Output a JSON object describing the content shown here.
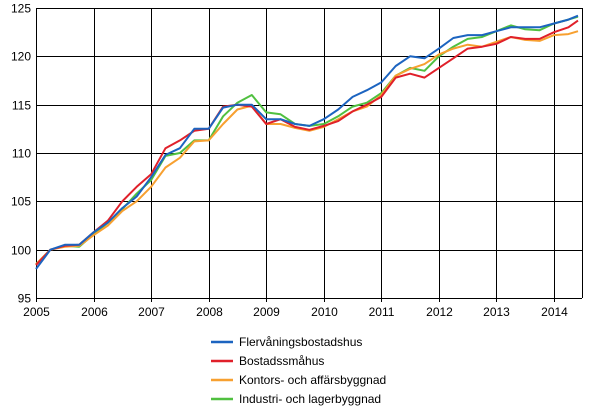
{
  "chart_data": {
    "type": "line",
    "title": "",
    "xlabel": "",
    "ylabel": "",
    "ylim": [
      95,
      125
    ],
    "xlim": [
      "2005-01",
      "2014-06"
    ],
    "yticks": [
      "95",
      "100",
      "105",
      "110",
      "115",
      "120",
      "125"
    ],
    "xticks": [
      "2005",
      "2006",
      "2007",
      "2008",
      "2009",
      "2010",
      "2011",
      "2012",
      "2013",
      "2014"
    ],
    "grid": true,
    "legend_position": "bottom",
    "x": [
      "2005-01",
      "2005-04",
      "2005-07",
      "2005-10",
      "2006-01",
      "2006-04",
      "2006-07",
      "2006-10",
      "2007-01",
      "2007-04",
      "2007-07",
      "2007-10",
      "2008-01",
      "2008-04",
      "2008-07",
      "2008-10",
      "2009-01",
      "2009-04",
      "2009-07",
      "2009-10",
      "2010-01",
      "2010-04",
      "2010-07",
      "2010-10",
      "2011-01",
      "2011-04",
      "2011-07",
      "2011-10",
      "2012-01",
      "2012-04",
      "2012-07",
      "2012-10",
      "2013-01",
      "2013-04",
      "2013-07",
      "2013-10",
      "2014-01",
      "2014-04",
      "2014-06"
    ],
    "series": [
      {
        "name": "Flervåningsbostadshus",
        "color": "#1c64c0",
        "values": [
          98.0,
          100.0,
          100.5,
          100.5,
          101.8,
          102.8,
          104.3,
          105.5,
          107.5,
          109.8,
          110.5,
          112.5,
          112.5,
          114.7,
          115.0,
          115.0,
          113.5,
          113.5,
          113.0,
          112.8,
          113.5,
          114.5,
          115.8,
          116.5,
          117.3,
          119.0,
          120.0,
          119.8,
          120.8,
          121.9,
          122.2,
          122.2,
          122.6,
          123.0,
          123.0,
          123.0,
          123.4,
          123.8,
          124.2
        ]
      },
      {
        "name": "Bostadssmåhus",
        "color": "#e0202a",
        "values": [
          98.4,
          100.0,
          100.4,
          100.5,
          101.8,
          103.0,
          105.0,
          106.5,
          107.8,
          110.5,
          111.3,
          112.3,
          112.5,
          114.8,
          115.0,
          114.8,
          113.0,
          113.5,
          112.7,
          112.4,
          112.8,
          113.3,
          114.3,
          115.0,
          115.8,
          117.8,
          118.2,
          117.8,
          118.8,
          119.8,
          120.8,
          121.0,
          121.3,
          122.0,
          121.8,
          121.8,
          122.5,
          123.0,
          123.7
        ]
      },
      {
        "name": "Kontors- och affärsbyggnad",
        "color": "#f7a030",
        "values": [
          98.5,
          100.0,
          100.3,
          100.4,
          101.5,
          102.5,
          104.0,
          105.0,
          106.5,
          108.5,
          109.5,
          111.2,
          111.3,
          113.0,
          114.5,
          114.9,
          113.0,
          113.0,
          112.6,
          112.3,
          112.7,
          113.5,
          114.3,
          114.8,
          116.0,
          118.0,
          118.7,
          119.2,
          120.2,
          120.8,
          121.2,
          121.0,
          121.5,
          122.0,
          121.7,
          121.6,
          122.2,
          122.3,
          122.6
        ]
      },
      {
        "name": "Industri- och lagerbyggnad",
        "color": "#50c040",
        "values": [
          98.5,
          100.0,
          100.4,
          100.3,
          101.6,
          102.8,
          104.2,
          105.8,
          107.2,
          109.7,
          110.0,
          111.3,
          111.3,
          113.8,
          115.2,
          116.0,
          114.2,
          114.0,
          113.0,
          112.8,
          113.0,
          113.8,
          114.8,
          115.2,
          116.2,
          118.0,
          118.8,
          118.5,
          120.0,
          121.0,
          121.8,
          122.0,
          122.6,
          123.2,
          122.8,
          122.7,
          123.4,
          123.8,
          124.1
        ]
      }
    ]
  }
}
